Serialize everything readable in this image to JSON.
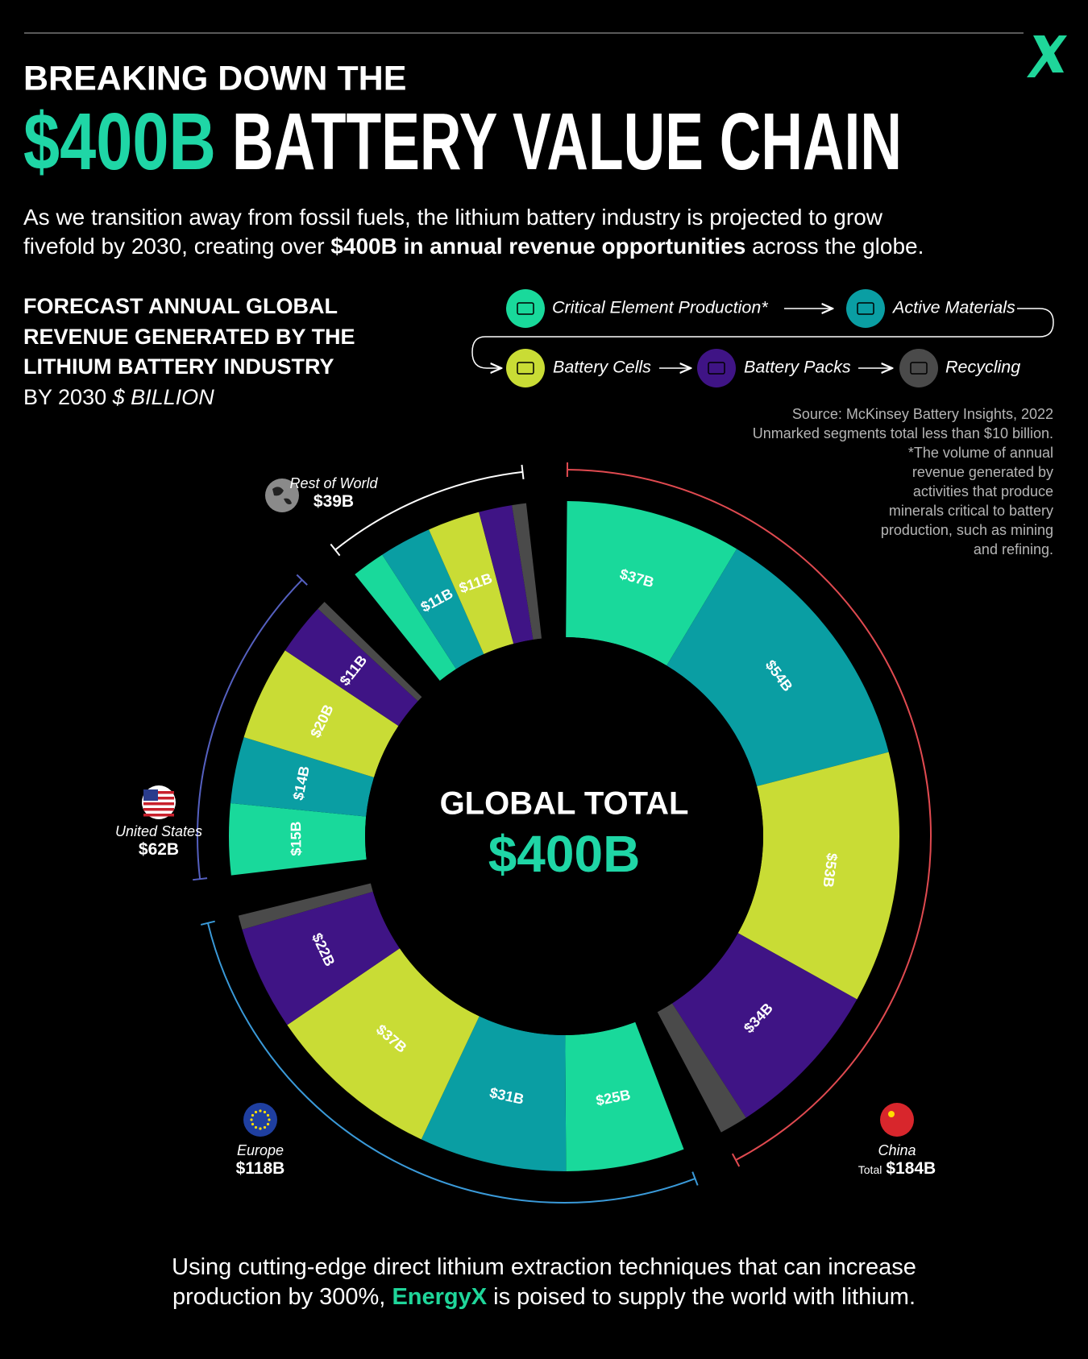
{
  "chart_data": {
    "type": "donut",
    "title_line1": "BREAKING DOWN THE",
    "title_highlight": "$400B",
    "title_main": "BATTERY VALUE CHAIN",
    "intro": [
      "As we transition away from fossil fuels, the lithium battery industry is projected to grow",
      "fivefold by 2030, creating over ",
      "$400B in annual revenue opportunities",
      " across the globe."
    ],
    "subtitle": [
      "FORECAST ANNUAL GLOBAL",
      "REVENUE GENERATED BY THE",
      "LITHIUM BATTERY INDUSTRY",
      "BY 2030"
    ],
    "unit": "$ BILLION",
    "notes": [
      "Source: McKinsey Battery Insights, 2022",
      "Unmarked segments total less than $10 billion.",
      "*The volume of annual",
      "revenue generated by",
      "activities that produce",
      "minerals critical to battery",
      "production, such as mining",
      "and refining."
    ],
    "center_label": "GLOBAL TOTAL",
    "center_total": {
      "value": 400,
      "label": "$400B"
    },
    "regions": [
      {
        "name": "China",
        "total_prefix": "Total",
        "total": 184,
        "total_label": "$184B",
        "color": "#e04a50"
      },
      {
        "name": "Europe",
        "total": 118,
        "total_label": "$118B",
        "color": "#3a9ad9"
      },
      {
        "name": "United States",
        "total": 62,
        "total_label": "$62B",
        "color": "#5560c0"
      },
      {
        "name": "Rest of World",
        "total": 39,
        "total_label": "$39B",
        "color": "#ffffff"
      }
    ],
    "series": [
      {
        "name": "Critical Element Production*",
        "color": "#19d99b",
        "values": [
          37,
          25,
          15,
          7
        ],
        "value_labels": [
          "$37B",
          "$25B",
          "$15B",
          null
        ]
      },
      {
        "name": "Active Materials",
        "color": "#0a9ea3",
        "values": [
          54,
          31,
          14,
          11
        ],
        "value_labels": [
          "$54B",
          "$31B",
          "$14B",
          "$11B"
        ]
      },
      {
        "name": "Battery Cells",
        "color": "#c9dc35",
        "values": [
          53,
          37,
          20,
          11
        ],
        "value_labels": [
          "$53B",
          "$37B",
          "$20B",
          "$11B"
        ]
      },
      {
        "name": "Battery Packs",
        "color": "#3f1485",
        "values": [
          34,
          22,
          11,
          7
        ],
        "value_labels": [
          "$34B",
          "$22B",
          "$11B",
          null
        ]
      },
      {
        "name": "Recycling",
        "color": "#4a4a4a",
        "values": [
          6,
          3,
          2,
          3
        ],
        "value_labels": [
          null,
          null,
          null,
          null
        ]
      }
    ]
  },
  "footer": {
    "line1": "Using cutting-edge direct lithium extraction techniques that can increase",
    "line2_before": "production by 300%, ",
    "brand": "EnergyX",
    "line2_after": " is poised to supply the world with lithium."
  }
}
